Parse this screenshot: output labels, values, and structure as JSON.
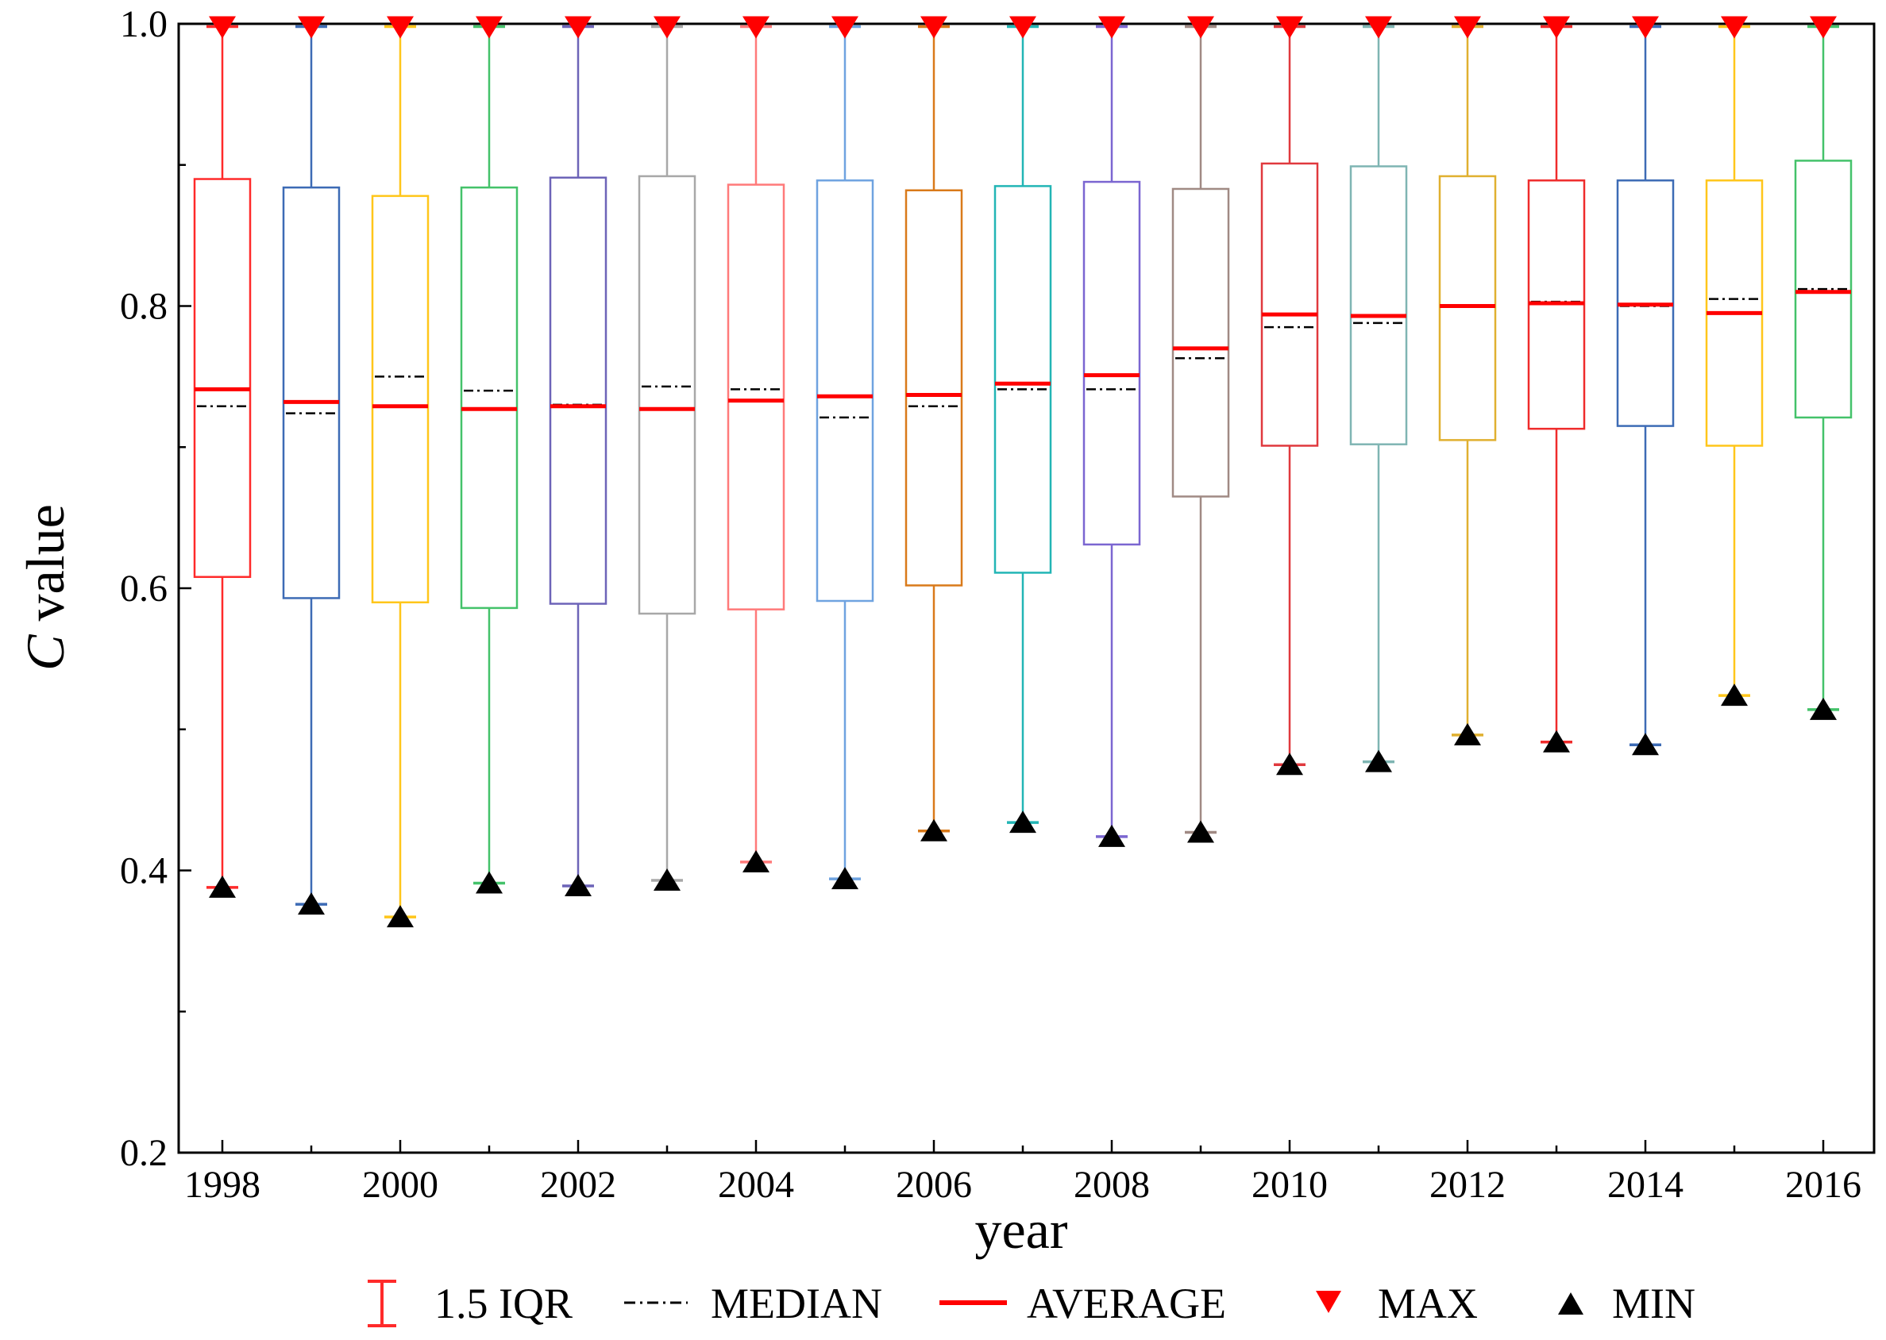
{
  "chart_data": {
    "type": "box",
    "title": "",
    "xlabel": "year",
    "ylabel": {
      "italic": "C",
      "rest": " value"
    },
    "ylim": [
      0.2,
      1.0
    ],
    "yticks": [
      "0.2",
      "0.4",
      "0.6",
      "0.8",
      "1.0"
    ],
    "xtick_labels": [
      "1998",
      "2000",
      "2002",
      "2004",
      "2006",
      "2008",
      "2010",
      "2012",
      "2014",
      "2016"
    ],
    "legend": {
      "position": "bottom",
      "entries": [
        {
          "key": "iqr",
          "label": "1.5 IQR"
        },
        {
          "key": "median",
          "label": "MEDIAN"
        },
        {
          "key": "average",
          "label": "AVERAGE"
        },
        {
          "key": "max",
          "label": "MAX"
        },
        {
          "key": "min",
          "label": "MIN"
        }
      ]
    },
    "colors": {
      "average": "#ff0000",
      "median": "#000000",
      "max_marker": "#ff0000",
      "min_marker": "#000000"
    },
    "series": [
      {
        "year": 1998,
        "color": "#ff2a2a",
        "min": 0.388,
        "q1": 0.608,
        "median": 0.729,
        "average": 0.741,
        "q3": 0.89,
        "max": 0.998
      },
      {
        "year": 1999,
        "color": "#3d6bb5",
        "min": 0.376,
        "q1": 0.593,
        "median": 0.724,
        "average": 0.732,
        "q3": 0.884,
        "max": 0.998
      },
      {
        "year": 2000,
        "color": "#ffc61a",
        "min": 0.367,
        "q1": 0.59,
        "median": 0.75,
        "average": 0.729,
        "q3": 0.878,
        "max": 0.998
      },
      {
        "year": 2001,
        "color": "#44c26a",
        "min": 0.391,
        "q1": 0.586,
        "median": 0.74,
        "average": 0.727,
        "q3": 0.884,
        "max": 0.998
      },
      {
        "year": 2002,
        "color": "#6d64b8",
        "min": 0.389,
        "q1": 0.589,
        "median": 0.73,
        "average": 0.729,
        "q3": 0.891,
        "max": 0.998
      },
      {
        "year": 2003,
        "color": "#a8a8a8",
        "min": 0.393,
        "q1": 0.582,
        "median": 0.743,
        "average": 0.727,
        "q3": 0.892,
        "max": 0.998
      },
      {
        "year": 2004,
        "color": "#ff7a7a",
        "min": 0.406,
        "q1": 0.585,
        "median": 0.741,
        "average": 0.733,
        "q3": 0.886,
        "max": 0.998
      },
      {
        "year": 2005,
        "color": "#6fa3e0",
        "min": 0.394,
        "q1": 0.591,
        "median": 0.721,
        "average": 0.736,
        "q3": 0.889,
        "max": 0.998
      },
      {
        "year": 2006,
        "color": "#d97a1a",
        "min": 0.428,
        "q1": 0.602,
        "median": 0.729,
        "average": 0.737,
        "q3": 0.882,
        "max": 0.998
      },
      {
        "year": 2007,
        "color": "#22b5b5",
        "min": 0.434,
        "q1": 0.611,
        "median": 0.741,
        "average": 0.745,
        "q3": 0.885,
        "max": 0.998
      },
      {
        "year": 2008,
        "color": "#7b66d1",
        "min": 0.424,
        "q1": 0.631,
        "median": 0.741,
        "average": 0.751,
        "q3": 0.888,
        "max": 0.998
      },
      {
        "year": 2009,
        "color": "#a08a84",
        "min": 0.427,
        "q1": 0.665,
        "median": 0.763,
        "average": 0.77,
        "q3": 0.883,
        "max": 0.998
      },
      {
        "year": 2010,
        "color": "#e0393e",
        "min": 0.475,
        "q1": 0.701,
        "median": 0.785,
        "average": 0.794,
        "q3": 0.901,
        "max": 0.998
      },
      {
        "year": 2011,
        "color": "#7fb5b3",
        "min": 0.477,
        "q1": 0.702,
        "median": 0.788,
        "average": 0.793,
        "q3": 0.899,
        "max": 0.998
      },
      {
        "year": 2012,
        "color": "#e0b030",
        "min": 0.496,
        "q1": 0.705,
        "median": 0.8,
        "average": 0.8,
        "q3": 0.892,
        "max": 0.998
      },
      {
        "year": 2013,
        "color": "#ef2b2b",
        "min": 0.491,
        "q1": 0.713,
        "median": 0.803,
        "average": 0.802,
        "q3": 0.889,
        "max": 0.998
      },
      {
        "year": 2014,
        "color": "#3d6bb5",
        "min": 0.489,
        "q1": 0.715,
        "median": 0.8,
        "average": 0.801,
        "q3": 0.889,
        "max": 0.998
      },
      {
        "year": 2015,
        "color": "#ffc61a",
        "min": 0.524,
        "q1": 0.701,
        "median": 0.805,
        "average": 0.795,
        "q3": 0.889,
        "max": 0.998
      },
      {
        "year": 2016,
        "color": "#44c26a",
        "min": 0.514,
        "q1": 0.721,
        "median": 0.812,
        "average": 0.81,
        "q3": 0.903,
        "max": 0.998
      }
    ]
  }
}
